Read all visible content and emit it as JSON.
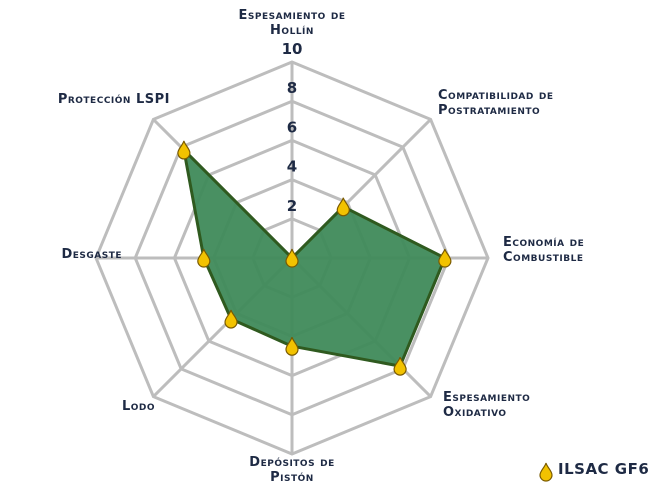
{
  "chart_data": {
    "type": "radar",
    "categories": [
      "Espesamiento de Hollín",
      "Compatibilidad de Postratamiento",
      "Economía de Combustible",
      "Espesamiento Oxidativo",
      "Depósitos de Pistón",
      "Lodo",
      "Desgaste",
      "Protección LSPI"
    ],
    "series": [
      {
        "name": "ILSAC GF6",
        "color": "#3f8a5a",
        "values": [
          0,
          3.7,
          7.8,
          7.8,
          4.5,
          4.4,
          4.5,
          7.8
        ]
      }
    ],
    "ylim": [
      0,
      10
    ],
    "yticks": [
      2,
      4,
      6,
      8,
      10
    ],
    "grid": true
  }
}
